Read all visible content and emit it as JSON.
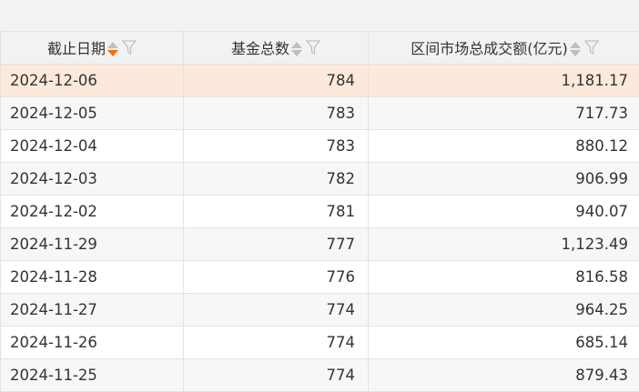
{
  "colors": {
    "accent": "#ff6a00",
    "selected_row": "#fde9dc",
    "header_bg": "#f2f2f2",
    "alt_row": "#f7f7f7"
  },
  "table": {
    "columns": [
      {
        "label": "截止日期",
        "sort": "descending",
        "icons": [
          "sort-icon",
          "filter-icon"
        ]
      },
      {
        "label": "基金总数",
        "sort": "none",
        "icons": [
          "sort-icon",
          "filter-icon"
        ]
      },
      {
        "label": "区间市场总成交额(亿元)",
        "sort": "none",
        "icons": [
          "sort-icon",
          "filter-icon"
        ]
      }
    ],
    "rows": [
      [
        "2024-12-06",
        "784",
        "1,181.17"
      ],
      [
        "2024-12-05",
        "783",
        "717.73"
      ],
      [
        "2024-12-04",
        "783",
        "880.12"
      ],
      [
        "2024-12-03",
        "782",
        "906.99"
      ],
      [
        "2024-12-02",
        "781",
        "940.07"
      ],
      [
        "2024-11-29",
        "777",
        "1,123.49"
      ],
      [
        "2024-11-28",
        "776",
        "816.58"
      ],
      [
        "2024-11-27",
        "774",
        "964.25"
      ],
      [
        "2024-11-26",
        "774",
        "685.14"
      ],
      [
        "2024-11-25",
        "774",
        "879.43"
      ]
    ]
  }
}
